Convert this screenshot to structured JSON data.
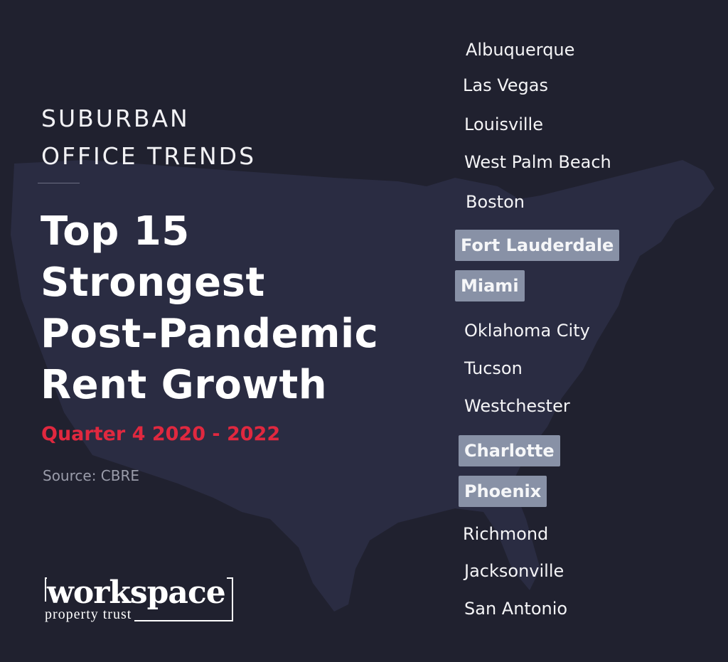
{
  "kicker": [
    "SUBURBAN",
    "OFFICE TRENDS"
  ],
  "title": [
    "Top 15",
    "Strongest",
    "Post-Pandemic",
    "Rent Growth"
  ],
  "subtitle": "Quarter 4 2020 - 2022",
  "source": "Source: CBRE",
  "logo": {
    "word": "workspace",
    "sub": "property trust"
  },
  "colors": {
    "background": "#20212f",
    "map": "#2a2c42",
    "accent": "#e0283f",
    "highlight": "#8891a6"
  },
  "cities": [
    {
      "name": "Albuquerque",
      "highlighted": false
    },
    {
      "name": "Las Vegas",
      "highlighted": false
    },
    {
      "name": "Louisville",
      "highlighted": false
    },
    {
      "name": "West Palm Beach",
      "highlighted": false
    },
    {
      "name": "Boston",
      "highlighted": false
    },
    {
      "name": "Fort Lauderdale",
      "highlighted": true
    },
    {
      "name": "Miami",
      "highlighted": true
    },
    {
      "name": "Oklahoma City",
      "highlighted": false
    },
    {
      "name": "Tucson",
      "highlighted": false
    },
    {
      "name": "Westchester",
      "highlighted": false
    },
    {
      "name": "Charlotte",
      "highlighted": true
    },
    {
      "name": "Phoenix",
      "highlighted": true
    },
    {
      "name": "Richmond",
      "highlighted": false
    },
    {
      "name": "Jacksonville",
      "highlighted": false
    },
    {
      "name": "San Antonio",
      "highlighted": false
    }
  ]
}
